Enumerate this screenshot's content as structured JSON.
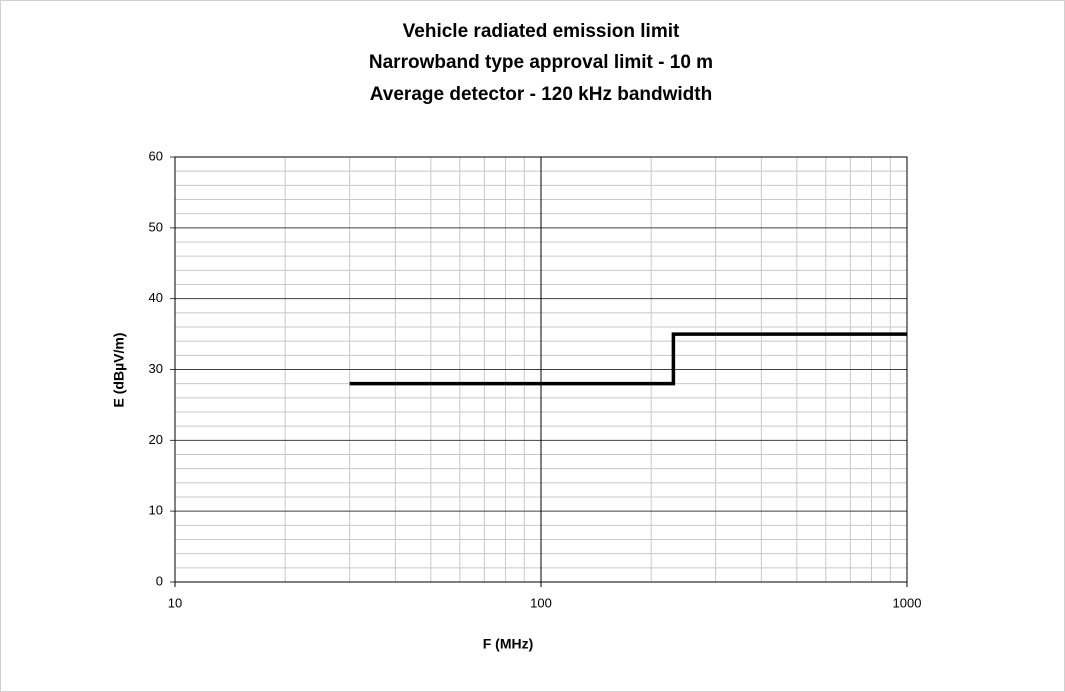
{
  "chart_data": {
    "type": "line",
    "title": "Vehicle radiated emission limit",
    "subtitle": [
      "Narrowband type approval limit - 10 m",
      "Average detector - 120 kHz bandwidth"
    ],
    "x_label": "F (MHz)",
    "y_label": "E (dBµV/m)",
    "x": [
      30,
      230,
      230,
      1000
    ],
    "series": [
      {
        "color": "#000000",
        "values": [
          28,
          28,
          35,
          35
        ]
      }
    ],
    "xlim": [
      10,
      1000
    ],
    "xticks": [
      10,
      100,
      1000
    ],
    "x_log": true,
    "ylim": [
      0,
      60
    ],
    "yticks": [
      0,
      10,
      20,
      30,
      40,
      50,
      60
    ],
    "grid": true,
    "minor_grid": true
  }
}
